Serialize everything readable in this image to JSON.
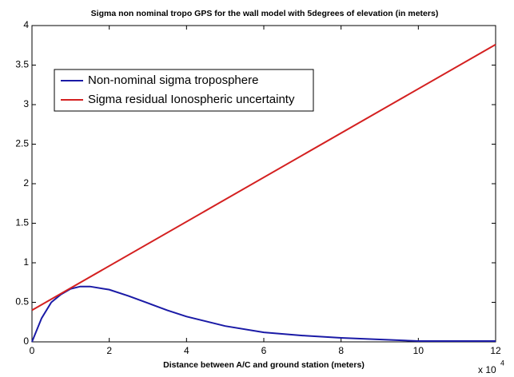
{
  "chart_data": {
    "type": "line",
    "title": "Sigma non nominal tropo GPS for the wall model with 5degrees of elevation (in meters)",
    "x_label": "Distance between A/C and ground station (meters)",
    "x_scale_label": {
      "base": "x 10",
      "exponent": "4"
    },
    "xlim": [
      0,
      12
    ],
    "xticks": [
      0,
      2,
      4,
      6,
      8,
      10,
      12
    ],
    "ylim": [
      0,
      4
    ],
    "yticks": [
      0,
      0.5,
      1,
      1.5,
      2,
      2.5,
      3,
      3.5,
      4
    ],
    "grid": false,
    "legend": "upper left",
    "series": [
      {
        "name": "Non-nominal sigma troposphere",
        "color": "#1a1aa6",
        "x": [
          0,
          0.25,
          0.5,
          0.75,
          1,
          1.25,
          1.5,
          2,
          2.5,
          3,
          3.5,
          4,
          5,
          6,
          7,
          8,
          9,
          10,
          11,
          12
        ],
        "values": [
          0,
          0.3,
          0.5,
          0.6,
          0.67,
          0.7,
          0.7,
          0.66,
          0.58,
          0.49,
          0.4,
          0.32,
          0.2,
          0.12,
          0.08,
          0.05,
          0.03,
          0.01,
          0.01,
          0.01
        ]
      },
      {
        "name": "Sigma residual Ionospheric uncertainty",
        "color": "#d42020",
        "x": [
          0,
          12
        ],
        "values": [
          0.4,
          3.76
        ]
      }
    ]
  }
}
